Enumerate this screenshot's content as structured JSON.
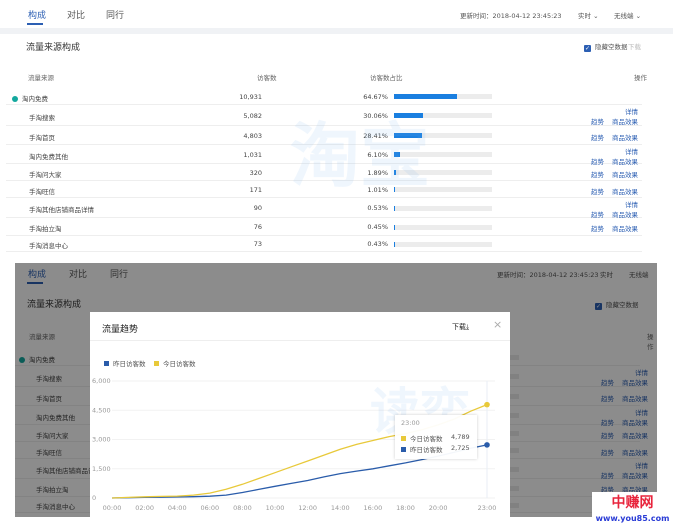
{
  "header": {
    "tabs": [
      "构成",
      "对比",
      "同行"
    ],
    "active_tab": 0,
    "update_time": "更新时间：2018-04-12 23:45:23",
    "period": "实时",
    "device": "无线端"
  },
  "card": {
    "title": "流量来源构成",
    "hide_empty_label": "隐藏空数据",
    "download": "下载"
  },
  "table": {
    "columns": [
      "流量来源",
      "访客数",
      "访客数占比",
      "操作"
    ],
    "rows": [
      {
        "name": "淘内免费",
        "visitors": "10,931",
        "pct": "64.67%",
        "share": 64.67,
        "ops": [],
        "level": 0
      },
      {
        "name": "手淘搜索",
        "visitors": "5,082",
        "pct": "30.06%",
        "share": 30.06,
        "ops": [
          "详情",
          "趋势",
          "商品效果"
        ],
        "level": 1
      },
      {
        "name": "手淘首页",
        "visitors": "4,803",
        "pct": "28.41%",
        "share": 28.41,
        "ops": [
          "趋势",
          "商品效果"
        ],
        "level": 1
      },
      {
        "name": "淘内免费其他",
        "visitors": "1,031",
        "pct": "6.10%",
        "share": 6.1,
        "ops": [
          "详情",
          "趋势",
          "商品效果"
        ],
        "level": 1
      },
      {
        "name": "手淘问大家",
        "visitors": "320",
        "pct": "1.89%",
        "share": 1.89,
        "ops": [
          "趋势",
          "商品效果"
        ],
        "level": 1
      },
      {
        "name": "手淘旺信",
        "visitors": "171",
        "pct": "1.01%",
        "share": 1.01,
        "ops": [
          "趋势",
          "商品效果"
        ],
        "level": 1
      },
      {
        "name": "手淘其他店铺商品详情",
        "visitors": "90",
        "pct": "0.53%",
        "share": 0.53,
        "ops": [
          "详情",
          "趋势",
          "商品效果"
        ],
        "level": 1
      },
      {
        "name": "手淘拍立淘",
        "visitors": "76",
        "pct": "0.45%",
        "share": 0.45,
        "ops": [
          "趋势",
          "商品效果"
        ],
        "level": 1
      },
      {
        "name": "手淘消息中心",
        "visitors": "73",
        "pct": "0.43%",
        "share": 0.43,
        "ops": [],
        "level": 1
      }
    ]
  },
  "modal": {
    "title": "流量趋势",
    "download": "下载",
    "close": "×"
  },
  "chart_data": {
    "type": "line",
    "x": [
      "00:00",
      "01:00",
      "02:00",
      "03:00",
      "04:00",
      "05:00",
      "06:00",
      "07:00",
      "08:00",
      "09:00",
      "10:00",
      "11:00",
      "12:00",
      "13:00",
      "14:00",
      "15:00",
      "16:00",
      "17:00",
      "18:00",
      "19:00",
      "20:00",
      "21:00",
      "22:00",
      "23:00"
    ],
    "x_ticks": [
      "00:00",
      "02:00",
      "04:00",
      "06:00",
      "08:00",
      "10:00",
      "12:00",
      "14:00",
      "16:00",
      "18:00",
      "20:00",
      "23:00"
    ],
    "y_ticks": [
      "0",
      "1,500",
      "3,000",
      "4,500",
      "6,000"
    ],
    "ylim": [
      0,
      6000
    ],
    "legend_position": "top-left",
    "series": [
      {
        "name": "昨日访客数",
        "color": "#2a5caa",
        "values": [
          0,
          15,
          30,
          40,
          50,
          65,
          90,
          150,
          280,
          440,
          600,
          750,
          900,
          1080,
          1250,
          1380,
          1500,
          1650,
          1800,
          1970,
          2150,
          2350,
          2550,
          2725
        ]
      },
      {
        "name": "今日访客数",
        "color": "#e8c93a",
        "values": [
          0,
          30,
          60,
          80,
          100,
          150,
          250,
          450,
          700,
          1000,
          1300,
          1600,
          1900,
          2200,
          2500,
          2750,
          2950,
          3150,
          3300,
          3500,
          3750,
          4050,
          4450,
          4789
        ]
      }
    ],
    "tooltip": {
      "title": "23:00",
      "items": [
        {
          "label": "今日访客数",
          "value": "4,789"
        },
        {
          "label": "昨日访客数",
          "value": "2,725"
        }
      ]
    }
  },
  "watermark": {
    "text": "中赚网",
    "url": "www.you85.com"
  }
}
